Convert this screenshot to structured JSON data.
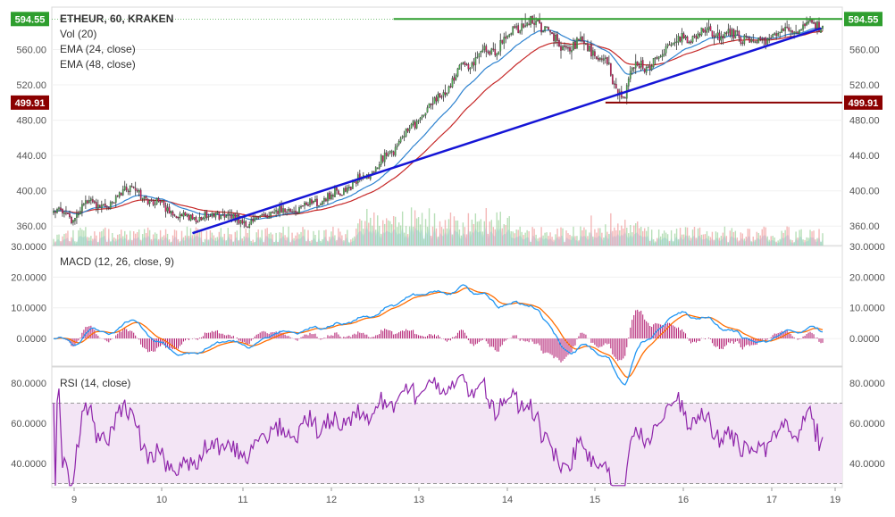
{
  "colors": {
    "bull": "#4caf50",
    "bear": "#d81b60",
    "wick": "#333333",
    "ema24": "#2f83d0",
    "ema48": "#c62828",
    "trend": "#1515d6",
    "resistance": "#2e9e2e",
    "support": "#8b0000",
    "macd": "#2196f3",
    "signal": "#ff6d00",
    "hist": "#b0186e",
    "rsi": "#8e24aa",
    "rsi_band": "#f3e5f5",
    "vol_area": "#64b5f6",
    "vol_up": "#9ad29a",
    "vol_down": "#ef9a9a"
  },
  "legend": {
    "symbol": "ETHEUR, 60, KRAKEN",
    "vol": "Vol (20)",
    "ema24": "EMA (24, close)",
    "ema48": "EMA (48, close)",
    "macd": "MACD (12, 26, close, 9)",
    "rsi": "RSI (14, close)"
  },
  "chart_data": [
    {
      "type": "candlestick",
      "title": "ETHEUR, 60, KRAKEN",
      "x": {
        "type": "hourly",
        "tick_labels": [
          "9",
          "10",
          "11",
          "12",
          "13",
          "14",
          "15",
          "16",
          "17",
          "19"
        ]
      },
      "ylim": [
        338,
        608
      ],
      "y_ticks": [
        360,
        400,
        440,
        480,
        520,
        560
      ],
      "y_tick_labels": [
        "360.00",
        "400.00",
        "440.00",
        "480.00",
        "520.00",
        "560.00"
      ],
      "price_labels": [
        {
          "text": "594.55",
          "value": 594.55,
          "kind": "resistance"
        },
        {
          "text": "499.91",
          "value": 499.91,
          "kind": "support"
        }
      ],
      "close_anchors": [
        [
          0,
          378
        ],
        [
          10,
          370
        ],
        [
          20,
          388
        ],
        [
          30,
          380
        ],
        [
          40,
          403
        ],
        [
          50,
          393
        ],
        [
          60,
          385
        ],
        [
          70,
          372
        ],
        [
          80,
          367
        ],
        [
          90,
          374
        ],
        [
          100,
          368
        ],
        [
          110,
          363
        ],
        [
          120,
          375
        ],
        [
          130,
          378
        ],
        [
          140,
          382
        ],
        [
          150,
          388
        ],
        [
          160,
          398
        ],
        [
          170,
          410
        ],
        [
          180,
          425
        ],
        [
          190,
          445
        ],
        [
          200,
          470
        ],
        [
          210,
          490
        ],
        [
          220,
          515
        ],
        [
          230,
          540
        ],
        [
          240,
          555
        ],
        [
          250,
          565
        ],
        [
          255,
          574
        ],
        [
          260,
          584
        ],
        [
          265,
          590
        ],
        [
          275,
          588
        ],
        [
          285,
          562
        ],
        [
          295,
          567
        ],
        [
          305,
          557
        ],
        [
          310,
          550
        ],
        [
          315,
          520
        ],
        [
          320,
          505
        ],
        [
          325,
          535
        ],
        [
          330,
          545
        ],
        [
          335,
          540
        ],
        [
          345,
          565
        ],
        [
          355,
          572
        ],
        [
          365,
          581
        ],
        [
          380,
          575
        ],
        [
          390,
          575
        ],
        [
          395,
          568
        ],
        [
          405,
          577
        ],
        [
          415,
          583
        ],
        [
          425,
          590
        ],
        [
          431,
          589
        ]
      ],
      "ema_periods": [
        24,
        48
      ],
      "volume": {
        "label": "Vol (20)",
        "baseline_frac": 0.04,
        "peak_frac": 0.16
      },
      "annotations": [
        {
          "kind": "trendline",
          "from": [
            78,
            352
          ],
          "to": [
            431,
            584
          ]
        },
        {
          "kind": "horizontal",
          "value": 594.55,
          "from": 191
        },
        {
          "kind": "horizontal",
          "value": 499.91,
          "from": 310
        }
      ]
    },
    {
      "type": "line",
      "title": "MACD (12, 26, close, 9)",
      "ylim": [
        -9,
        30
      ],
      "y_ticks": [
        0,
        10,
        20,
        30
      ],
      "y_tick_labels": [
        "0.0000",
        "10.0000",
        "20.0000",
        "30.0000"
      ],
      "series": [
        {
          "name": "MACD",
          "source": "computed"
        },
        {
          "name": "Signal",
          "source": "computed"
        },
        {
          "name": "Histogram",
          "source": "computed"
        }
      ]
    },
    {
      "type": "line",
      "title": "RSI (14, close)",
      "ylim": [
        28,
        88
      ],
      "y_ticks": [
        40,
        60,
        80
      ],
      "y_tick_labels": [
        "40.0000",
        "60.0000",
        "80.0000"
      ],
      "bands": [
        30,
        70
      ],
      "series": [
        {
          "name": "RSI",
          "source": "computed"
        }
      ]
    }
  ]
}
